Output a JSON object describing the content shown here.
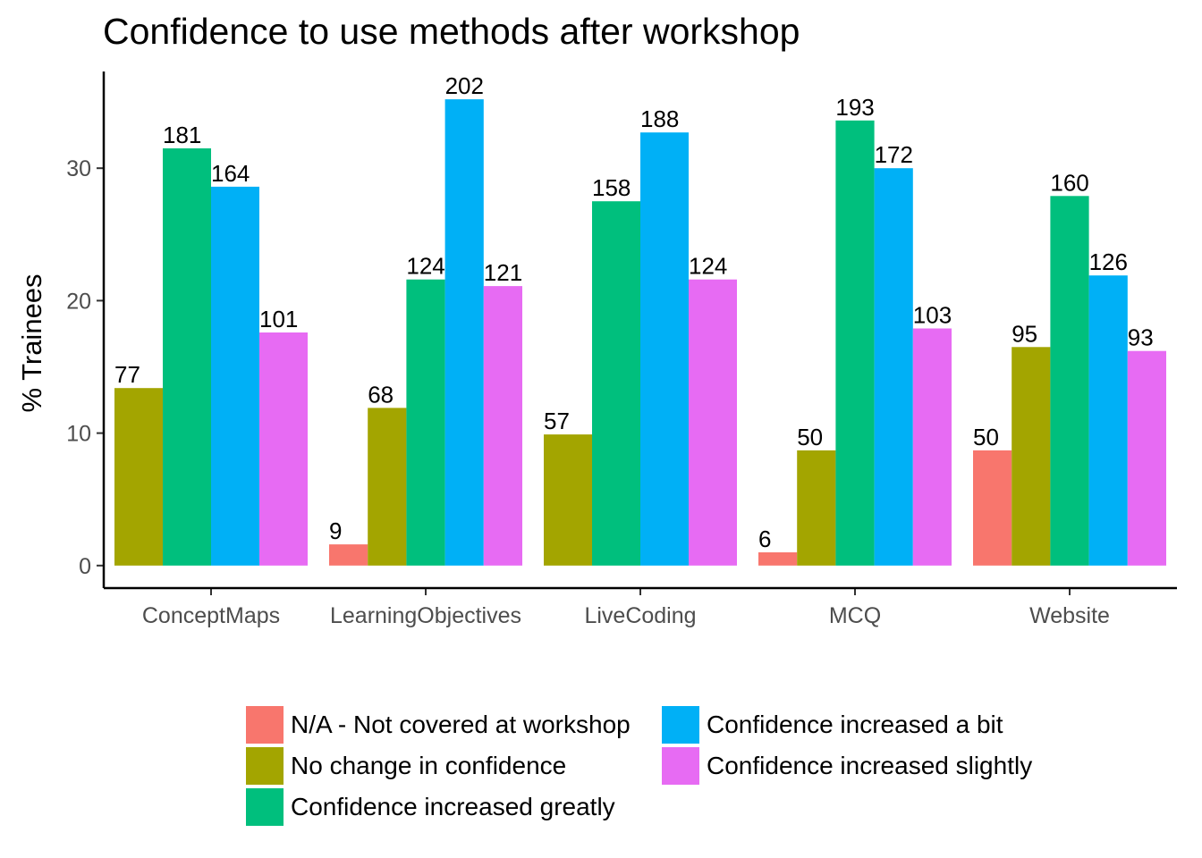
{
  "chart_data": {
    "type": "bar",
    "title": "Confidence to use methods after workshop",
    "xlabel": "",
    "ylabel": "% Trainees",
    "ylim": [
      -1.7,
      37.3
    ],
    "yticks": [
      "0",
      "10",
      "20",
      "30"
    ],
    "grid": false,
    "legend_position": "bottom",
    "categories": [
      "ConceptMaps",
      "LearningObjectives",
      "LiveCoding",
      "MCQ",
      "Website"
    ],
    "series": [
      {
        "name": "N/A - Not covered at workshop",
        "color": "#F8766D",
        "values": [
          null,
          1.6,
          null,
          1.0,
          8.7
        ],
        "labels": [
          "",
          "9",
          "",
          "6",
          "50"
        ]
      },
      {
        "name": "No change in confidence",
        "color": "#A3A500",
        "values": [
          13.4,
          11.9,
          9.9,
          8.7,
          16.5
        ],
        "labels": [
          "77",
          "68",
          "57",
          "50",
          "95"
        ]
      },
      {
        "name": "Confidence increased greatly",
        "color": "#00BF7D",
        "values": [
          31.5,
          21.6,
          27.5,
          33.6,
          27.9
        ],
        "labels": [
          "181",
          "124",
          "158",
          "193",
          "160"
        ]
      },
      {
        "name": "Confidence increased a bit",
        "color": "#00B0F6",
        "values": [
          28.6,
          35.2,
          32.7,
          30.0,
          21.9
        ],
        "labels": [
          "164",
          "202",
          "188",
          "172",
          "126"
        ]
      },
      {
        "name": "Confidence increased slightly",
        "color": "#E76BF3",
        "values": [
          17.6,
          21.1,
          21.6,
          17.9,
          16.2
        ],
        "labels": [
          "101",
          "121",
          "124",
          "103",
          "93"
        ]
      }
    ]
  }
}
